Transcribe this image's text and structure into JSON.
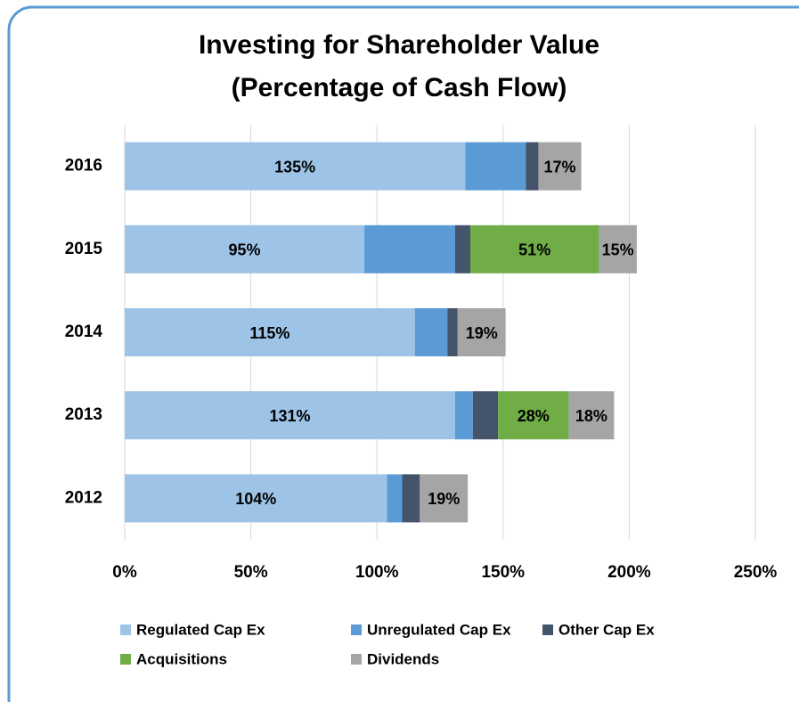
{
  "chart_data": {
    "type": "stacked-bar-horizontal",
    "title": "Investing for Shareholder Value",
    "subtitle": "(Percentage of Cash Flow)",
    "categories": [
      "2016",
      "2015",
      "2014",
      "2013",
      "2012"
    ],
    "series": [
      {
        "name": "Regulated Cap Ex",
        "color": "#9dc3e6",
        "values": [
          135,
          95,
          115,
          131,
          104
        ],
        "value_labels": [
          "135%",
          "95%",
          "115%",
          "131%",
          "104%"
        ]
      },
      {
        "name": "Unregulated Cap Ex",
        "color": "#5b9bd5",
        "values": [
          24,
          36,
          13,
          7,
          6
        ]
      },
      {
        "name": "Other Cap Ex",
        "color": "#44546a",
        "values": [
          5,
          6,
          4,
          10,
          7
        ]
      },
      {
        "name": "Acquisitions",
        "color": "#70ad47",
        "values": [
          null,
          51,
          null,
          28,
          null
        ],
        "value_labels": [
          null,
          "51%",
          null,
          "28%",
          null
        ]
      },
      {
        "name": "Dividends",
        "color": "#a5a5a5",
        "values": [
          17,
          15,
          19,
          18,
          19
        ],
        "value_labels": [
          "17%",
          "15%",
          "19%",
          "18%",
          "19%"
        ]
      }
    ],
    "xlim": [
      0,
      250
    ],
    "xticks": [
      {
        "value": 0,
        "label": "0%"
      },
      {
        "value": 50,
        "label": "50%"
      },
      {
        "value": 100,
        "label": "100%"
      },
      {
        "value": 150,
        "label": "150%"
      },
      {
        "value": 200,
        "label": "200%"
      },
      {
        "value": 250,
        "label": "250%"
      }
    ],
    "grid": true,
    "legend": "bottom"
  }
}
